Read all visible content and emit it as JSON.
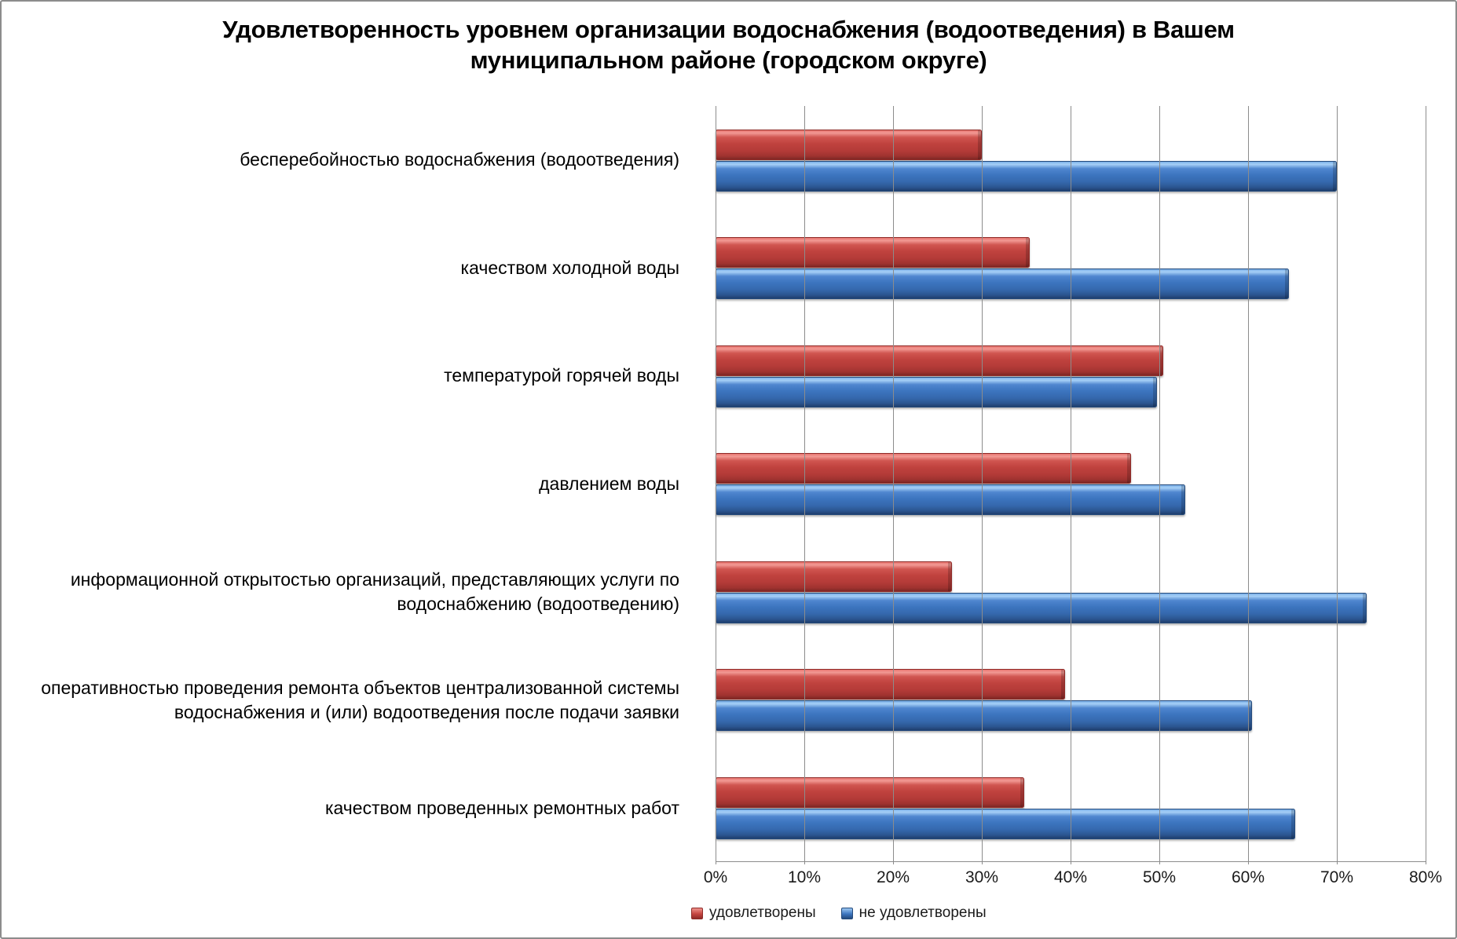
{
  "title_lines": [
    "Удовлетворенность уровнем организации водоснабжения (водоотведения) в Вашем",
    "муниципальном районе (городском округе)"
  ],
  "legend": {
    "satisfied_label": "удовлетворены",
    "not_satisfied_label": "не удовлетворены"
  },
  "colors": {
    "satisfied": "#C0423E",
    "not_satisfied": "#3C75BF",
    "gridline": "#8C8C8C",
    "frame_border": "#8C8C8C",
    "text": "#000000"
  },
  "chart_data": {
    "type": "bar",
    "orientation": "horizontal",
    "title": "Удовлетворенность уровнем организации водоснабжения (водоотведения) в Вашем муниципальном районе (городском округе)",
    "xlabel": "",
    "ylabel": "",
    "xlim": [
      0,
      80
    ],
    "x_ticks": [
      "0%",
      "10%",
      "20%",
      "30%",
      "40%",
      "50%",
      "60%",
      "70%",
      "80%"
    ],
    "grid": true,
    "legend_position": "bottom",
    "categories": [
      "бесперебойностью водоснабжения (водоотведения)",
      "качеством холодной воды",
      "температурой горячей воды",
      "давлением воды",
      "информационной открытостью организаций, представляющих услуги по водоснабжению (водоотведению)",
      "оперативностью проведения ремонта объектов централизованной системы водоснабжения и (или) водоотведения после подачи заявки",
      "качеством проведенных ремонтных работ"
    ],
    "series": [
      {
        "name": "удовлетворены",
        "color": "#C0423E",
        "values": [
          30.0,
          35.4,
          50.4,
          46.8,
          26.6,
          39.4,
          34.8
        ]
      },
      {
        "name": "не удовлетворены",
        "color": "#3C75BF",
        "values": [
          70.0,
          64.6,
          49.7,
          52.9,
          73.4,
          60.4,
          65.3
        ]
      }
    ]
  }
}
